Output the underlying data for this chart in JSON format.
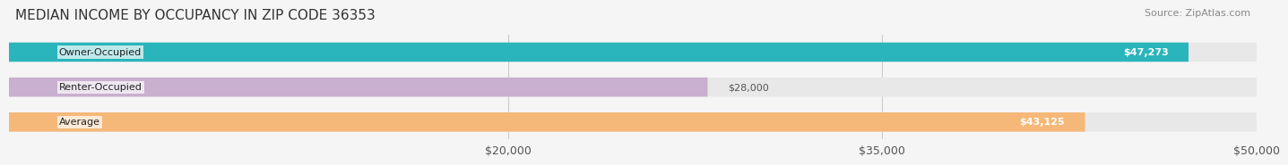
{
  "title": "MEDIAN INCOME BY OCCUPANCY IN ZIP CODE 36353",
  "source": "Source: ZipAtlas.com",
  "categories": [
    "Owner-Occupied",
    "Renter-Occupied",
    "Average"
  ],
  "values": [
    47273,
    28000,
    43125
  ],
  "labels": [
    "$47,273",
    "$28,000",
    "$43,125"
  ],
  "bar_colors": [
    "#2ab5bc",
    "#c9afd0",
    "#f5b878"
  ],
  "bar_edge_colors": [
    "#2ab5bc",
    "#c9afd0",
    "#f5b878"
  ],
  "label_bg": [
    "#2ab5bc",
    "none",
    "#f5b878"
  ],
  "label_text_colors": [
    "white",
    "#444444",
    "white"
  ],
  "xlim": [
    0,
    50000
  ],
  "xticks": [
    20000,
    35000,
    50000
  ],
  "xtick_labels": [
    "$20,000",
    "$35,000",
    "$50,000"
  ],
  "background_color": "#f5f5f5",
  "bar_bg_color": "#e8e8e8",
  "title_fontsize": 11,
  "source_fontsize": 8,
  "tick_fontsize": 9,
  "bar_label_fontsize": 8,
  "category_fontsize": 8
}
